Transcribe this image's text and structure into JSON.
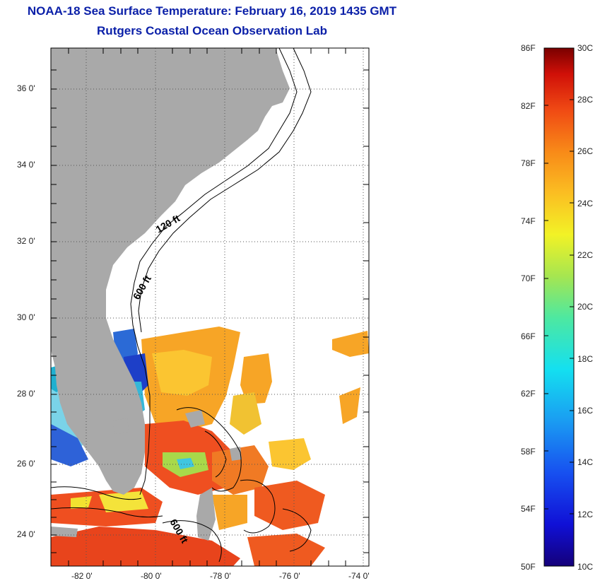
{
  "title": "NOAA-18 Sea Surface Temperature:  February 16, 2019 1435 GMT",
  "subtitle": "Rutgers Coastal Ocean Observation Lab",
  "map": {
    "lat_labels": [
      "36 0'",
      "34 0'",
      "32 0'",
      "30 0'",
      "28 0'",
      "26 0'",
      "24 0'"
    ],
    "lon_labels": [
      "-82 0'",
      "-80 0'",
      "-78 0'",
      "-76 0'",
      "-74 0'"
    ],
    "contour_labels": [
      "120 ft",
      "600 ft",
      "600 ft"
    ],
    "land_color": "#a9a9a9"
  },
  "colorbar": {
    "f_labels": [
      "86F",
      "82F",
      "78F",
      "74F",
      "70F",
      "66F",
      "62F",
      "58F",
      "54F",
      "50F"
    ],
    "c_labels": [
      "30C",
      "28C",
      "26C",
      "24C",
      "22C",
      "20C",
      "18C",
      "16C",
      "14C",
      "12C",
      "10C"
    ],
    "min_c": 10,
    "max_c": 30
  }
}
